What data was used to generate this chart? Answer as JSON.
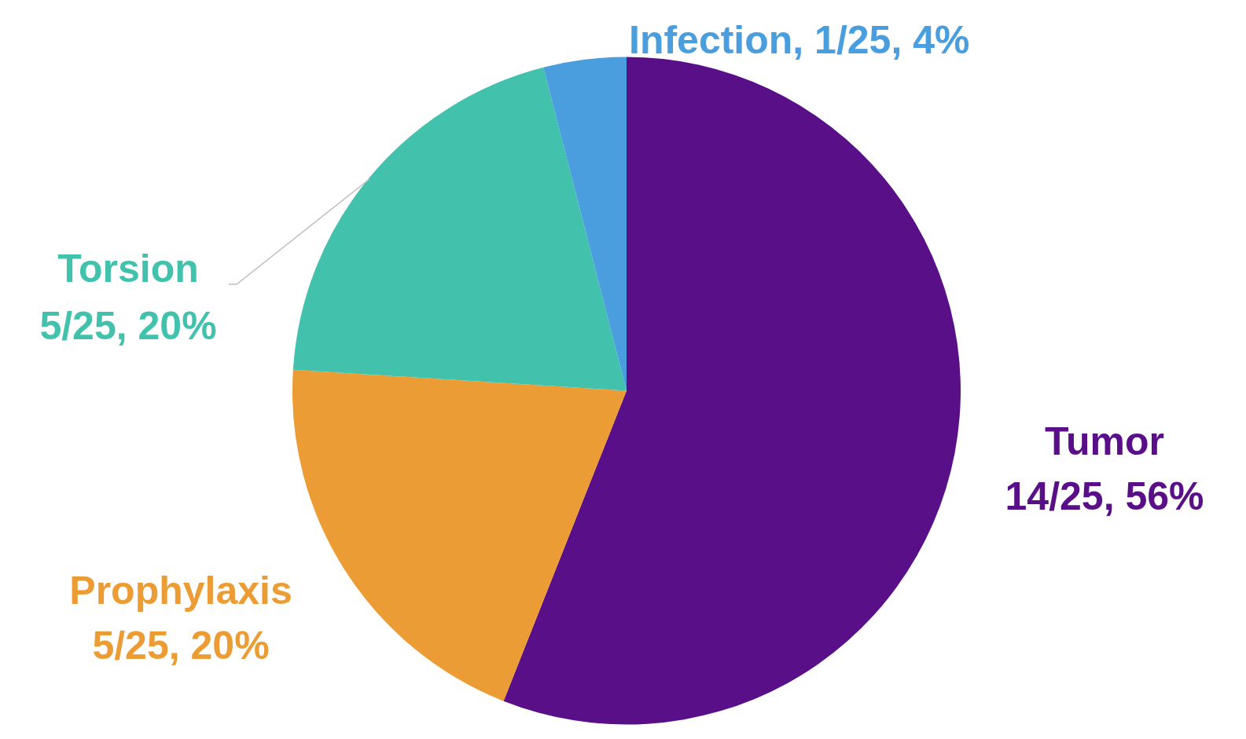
{
  "chart_data": {
    "type": "pie",
    "categories": [
      "Tumor",
      "Prophylaxis",
      "Torsion",
      "Infection"
    ],
    "values": [
      56,
      20,
      20,
      4
    ],
    "colors": [
      "#580f87",
      "#ec9c34",
      "#42c1ac",
      "#4a9ede"
    ],
    "value_labels": [
      "14/25, 56%",
      "5/25, 20%",
      "5/25, 20%",
      "1/25, 4%"
    ],
    "legend": false
  }
}
